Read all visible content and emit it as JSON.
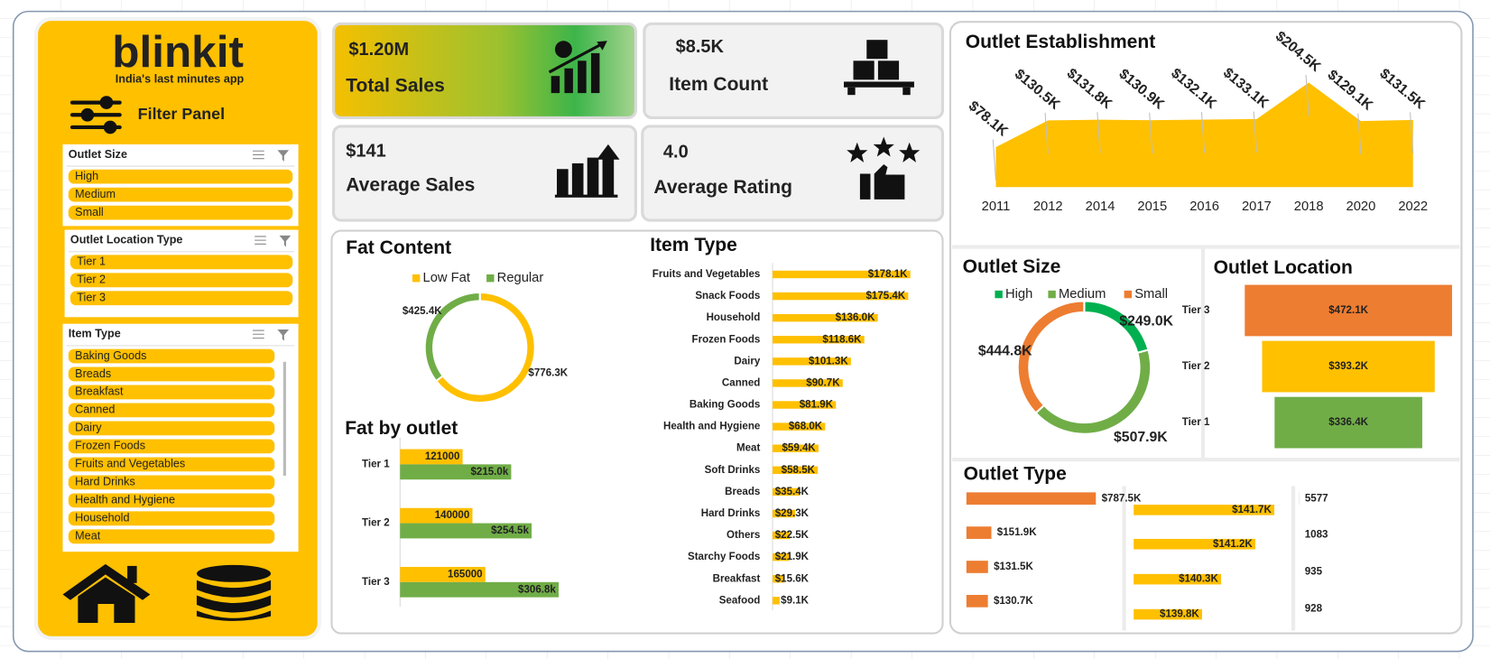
{
  "sidebar": {
    "logo": "blinkit",
    "tagline": "India's last minutes app",
    "title": "Filter Panel",
    "slicers": [
      {
        "title": "Outlet Size",
        "items": [
          "High",
          "Medium",
          "Small"
        ]
      },
      {
        "title": "Outlet Location Type",
        "items": [
          "Tier 1",
          "Tier 2",
          "Tier 3"
        ]
      },
      {
        "title": "Item Type",
        "items": [
          "Baking Goods",
          "Breads",
          "Breakfast",
          "Canned",
          "Dairy",
          "Frozen Foods",
          "Fruits and Vegetables",
          "Hard Drinks",
          "Health and Hygiene",
          "Household",
          "Meat"
        ]
      }
    ]
  },
  "kpis": [
    {
      "value": "$1.20M",
      "label": "Total Sales"
    },
    {
      "value": "$8.5K",
      "label": "Item Count"
    },
    {
      "value": "$141",
      "label": "Average Sales"
    },
    {
      "value": "4.0",
      "label": "Average Rating"
    }
  ],
  "chart_data": [
    {
      "type": "area",
      "title": "Outlet Establishment",
      "color": "#FFC000",
      "categories": [
        "2011",
        "2012",
        "2014",
        "2015",
        "2016",
        "2017",
        "2018",
        "2020",
        "2022"
      ],
      "values": [
        78100,
        130500,
        131800,
        130900,
        132100,
        133100,
        204500,
        129100,
        131500
      ],
      "value_labels": [
        "$78.1K",
        "$130.5K",
        "$131.8K",
        "$130.9K",
        "$132.1K",
        "$133.1K",
        "$204.5K",
        "$129.1K",
        "$131.5K"
      ]
    },
    {
      "type": "pie",
      "title": "Fat Content",
      "categories": [
        "Low Fat",
        "Regular"
      ],
      "values": [
        776300,
        425400
      ],
      "value_labels": [
        "$776.3K",
        "$425.4K"
      ],
      "colors": [
        "#FFC000",
        "#70AD47"
      ],
      "legend": "top"
    },
    {
      "type": "bar",
      "title": "Fat by outlet",
      "categories": [
        "Tier 1",
        "Tier 2",
        "Tier 3"
      ],
      "series": [
        {
          "color": "#FFC000",
          "values": [
            121000,
            140000,
            165000
          ]
        },
        {
          "color": "#70AD47",
          "values": [
            215000,
            254500,
            306800
          ],
          "value_labels": [
            "$215.0k",
            "$254.5k",
            "$306.8k"
          ]
        }
      ]
    },
    {
      "type": "bar",
      "title": "Item Type",
      "color": "#FFC000",
      "categories": [
        "Fruits and Vegetables",
        "Snack Foods",
        "Household",
        "Frozen Foods",
        "Dairy",
        "Canned",
        "Baking Goods",
        "Health and Hygiene",
        "Meat",
        "Soft Drinks",
        "Breads",
        "Hard Drinks",
        "Others",
        "Starchy Foods",
        "Breakfast",
        "Seafood"
      ],
      "values": [
        178100,
        175400,
        136000,
        118600,
        101300,
        90700,
        81900,
        68000,
        59400,
        58500,
        35400,
        29300,
        22500,
        21900,
        15600,
        9100
      ],
      "value_labels": [
        "$178.1K",
        "$175.4K",
        "$136.0K",
        "$118.6K",
        "$101.3K",
        "$90.7K",
        "$81.9K",
        "$68.0K",
        "$59.4K",
        "$58.5K",
        "$35.4K",
        "$29.3K",
        "$22.5K",
        "$21.9K",
        "$15.6K",
        "$9.1K"
      ]
    },
    {
      "type": "pie",
      "title": "Outlet Size",
      "categories": [
        "High",
        "Medium",
        "Small"
      ],
      "values": [
        249000,
        507900,
        444800
      ],
      "value_labels": [
        "$249.0K",
        "$507.9K",
        "$444.8K"
      ],
      "colors": [
        "#00B050",
        "#70AD47",
        "#ED7D31"
      ],
      "legend": "top"
    },
    {
      "type": "funnel",
      "title": "Outlet Location",
      "categories": [
        "Tier 3",
        "Tier 2",
        "Tier 1"
      ],
      "values": [
        472100,
        393200,
        336400
      ],
      "value_labels": [
        "$472.1K",
        "$393.2K",
        "$336.4K"
      ],
      "colors": [
        "#ED7D31",
        "#FFC000",
        "#70AD47"
      ]
    },
    {
      "type": "bar",
      "title": "Outlet Type",
      "color": "#ED7D31",
      "values": [
        787500,
        151900,
        131500,
        130700
      ],
      "value_labels": [
        "$787.5K",
        "$151.9K",
        "$131.5K",
        "$130.7K"
      ]
    },
    {
      "type": "bar",
      "color": "#FFC000",
      "xlim": [
        138000,
        142000
      ],
      "values": [
        141700,
        141200,
        140300,
        139800
      ],
      "value_labels": [
        "$141.7K",
        "$141.2K",
        "$140.3K",
        "$139.8K"
      ]
    },
    {
      "type": "bar",
      "color": "#70AD47",
      "values": [
        5577,
        1083,
        935,
        928
      ]
    }
  ]
}
